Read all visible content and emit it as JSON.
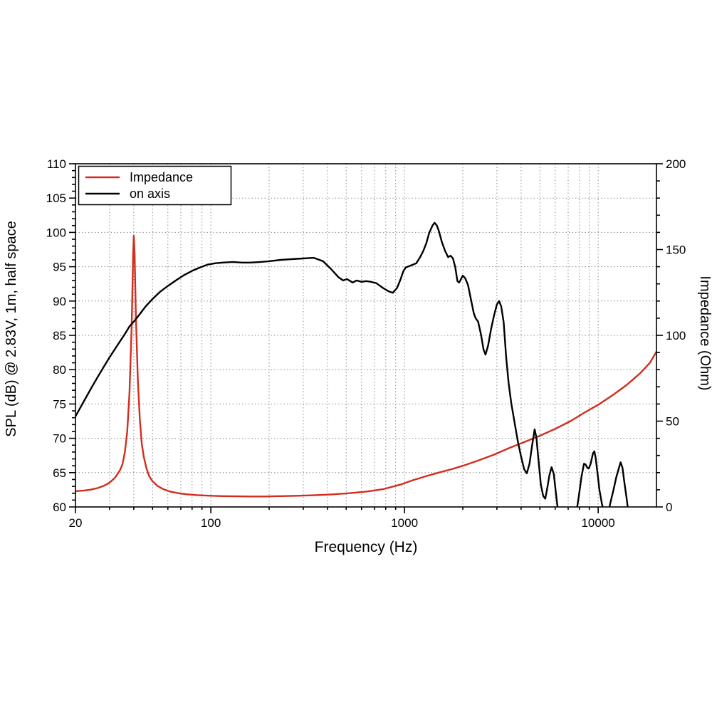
{
  "page": {
    "background": "#ffffff"
  },
  "chart_data": {
    "type": "line",
    "title": "",
    "xlabel": "Frequency (Hz)",
    "ylabel_left": "SPL (dB) @ 2.83V, 1m, half space",
    "ylabel_right": "Impedance (Ohm)",
    "x_scale": "log",
    "xlim": [
      20,
      20000
    ],
    "ylim_left": [
      60,
      110
    ],
    "ylim_right": [
      0,
      200
    ],
    "x_tick_values": [
      20,
      100,
      1000,
      10000
    ],
    "x_tick_labels": [
      "20",
      "100",
      "1000",
      "10000"
    ],
    "y_ticks_left": [
      60,
      65,
      70,
      75,
      80,
      85,
      90,
      95,
      100,
      105,
      110
    ],
    "y_ticks_right": [
      0,
      50,
      100,
      150,
      200
    ],
    "y_minor_step_left": 1,
    "y_minor_step_right": 10,
    "grid": "dotted",
    "grid_color": "#8c8c8c",
    "axis_color": "#000000",
    "legend_position": "top-left",
    "legend_entries": [
      "Impedance",
      "on axis"
    ],
    "series": [
      {
        "name": "Impedance",
        "axis": "right",
        "unit": "Ohm",
        "color": "#d22d1e",
        "points": [
          [
            20,
            9.2
          ],
          [
            22,
            9.5
          ],
          [
            24,
            10.1
          ],
          [
            26,
            11.0
          ],
          [
            28,
            12.3
          ],
          [
            30,
            14.2
          ],
          [
            32,
            17.0
          ],
          [
            34,
            21.5
          ],
          [
            35,
            25.0
          ],
          [
            36,
            32.0
          ],
          [
            37,
            44.0
          ],
          [
            38,
            66.0
          ],
          [
            39,
            105.0
          ],
          [
            39.7,
            147.0
          ],
          [
            40,
            158.0
          ],
          [
            40.4,
            147.0
          ],
          [
            41,
            112.0
          ],
          [
            42,
            74.0
          ],
          [
            43,
            51.0
          ],
          [
            44,
            37.0
          ],
          [
            45,
            29.5
          ],
          [
            46.5,
            22.5
          ],
          [
            48,
            18.0
          ],
          [
            50,
            15.0
          ],
          [
            53,
            12.3
          ],
          [
            57,
            10.3
          ],
          [
            62,
            8.9
          ],
          [
            68,
            8.0
          ],
          [
            75,
            7.4
          ],
          [
            85,
            6.9
          ],
          [
            100,
            6.5
          ],
          [
            115,
            6.3
          ],
          [
            135,
            6.2
          ],
          [
            160,
            6.1
          ],
          [
            190,
            6.1
          ],
          [
            230,
            6.3
          ],
          [
            280,
            6.5
          ],
          [
            340,
            6.8
          ],
          [
            420,
            7.3
          ],
          [
            520,
            8.0
          ],
          [
            640,
            9.0
          ],
          [
            780,
            10.4
          ],
          [
            950,
            13.0
          ],
          [
            1100,
            15.5
          ],
          [
            1300,
            18.0
          ],
          [
            1500,
            20.0
          ],
          [
            1750,
            22.0
          ],
          [
            2000,
            24.0
          ],
          [
            2400,
            27.0
          ],
          [
            2900,
            30.5
          ],
          [
            3500,
            34.5
          ],
          [
            4200,
            38.0
          ],
          [
            5000,
            41.5
          ],
          [
            6000,
            45.5
          ],
          [
            7200,
            50.0
          ],
          [
            8500,
            55.0
          ],
          [
            10000,
            59.5
          ],
          [
            12000,
            65.5
          ],
          [
            14000,
            71.0
          ],
          [
            16500,
            78.0
          ],
          [
            18500,
            84.0
          ],
          [
            20000,
            90.5
          ]
        ]
      },
      {
        "name": "on axis",
        "axis": "left",
        "unit": "dB SPL",
        "color": "#000000",
        "points": [
          [
            20,
            73.2
          ],
          [
            22,
            75.3
          ],
          [
            24,
            77.2
          ],
          [
            26,
            78.9
          ],
          [
            28,
            80.4
          ],
          [
            30,
            81.8
          ],
          [
            33,
            83.6
          ],
          [
            36,
            85.2
          ],
          [
            38,
            86.3
          ],
          [
            40,
            87.0
          ],
          [
            43,
            88.1
          ],
          [
            46,
            89.2
          ],
          [
            50,
            90.3
          ],
          [
            55,
            91.4
          ],
          [
            60,
            92.2
          ],
          [
            66,
            93.0
          ],
          [
            72,
            93.7
          ],
          [
            80,
            94.4
          ],
          [
            88,
            94.9
          ],
          [
            96,
            95.3
          ],
          [
            105,
            95.5
          ],
          [
            115,
            95.6
          ],
          [
            130,
            95.7
          ],
          [
            145,
            95.6
          ],
          [
            160,
            95.6
          ],
          [
            180,
            95.7
          ],
          [
            200,
            95.8
          ],
          [
            230,
            96.0
          ],
          [
            260,
            96.1
          ],
          [
            300,
            96.2
          ],
          [
            340,
            96.3
          ],
          [
            380,
            95.8
          ],
          [
            420,
            94.6
          ],
          [
            455,
            93.5
          ],
          [
            482,
            93.0
          ],
          [
            505,
            93.2
          ],
          [
            540,
            92.7
          ],
          [
            565,
            93.0
          ],
          [
            600,
            92.8
          ],
          [
            635,
            92.9
          ],
          [
            670,
            92.8
          ],
          [
            715,
            92.6
          ],
          [
            775,
            91.9
          ],
          [
            830,
            91.4
          ],
          [
            870,
            91.2
          ],
          [
            915,
            91.9
          ],
          [
            955,
            93.2
          ],
          [
            985,
            94.3
          ],
          [
            1015,
            94.9
          ],
          [
            1060,
            95.1
          ],
          [
            1105,
            95.3
          ],
          [
            1150,
            95.5
          ],
          [
            1205,
            96.4
          ],
          [
            1250,
            97.3
          ],
          [
            1295,
            98.4
          ],
          [
            1340,
            99.9
          ],
          [
            1395,
            101.0
          ],
          [
            1430,
            101.4
          ],
          [
            1470,
            101.0
          ],
          [
            1505,
            100.2
          ],
          [
            1560,
            98.6
          ],
          [
            1620,
            97.3
          ],
          [
            1680,
            96.4
          ],
          [
            1730,
            96.6
          ],
          [
            1780,
            96.2
          ],
          [
            1830,
            94.9
          ],
          [
            1875,
            92.9
          ],
          [
            1915,
            92.7
          ],
          [
            2000,
            93.7
          ],
          [
            2060,
            93.3
          ],
          [
            2130,
            92.3
          ],
          [
            2200,
            90.3
          ],
          [
            2280,
            88.2
          ],
          [
            2330,
            87.5
          ],
          [
            2400,
            87.0
          ],
          [
            2480,
            85.2
          ],
          [
            2560,
            82.9
          ],
          [
            2620,
            82.2
          ],
          [
            2700,
            83.5
          ],
          [
            2800,
            85.9
          ],
          [
            2900,
            87.9
          ],
          [
            3000,
            89.5
          ],
          [
            3080,
            90.0
          ],
          [
            3160,
            89.2
          ],
          [
            3250,
            86.9
          ],
          [
            3350,
            81.8
          ],
          [
            3450,
            78.0
          ],
          [
            3560,
            75.1
          ],
          [
            3700,
            72.3
          ],
          [
            3850,
            69.5
          ],
          [
            4000,
            67.3
          ],
          [
            4150,
            65.5
          ],
          [
            4280,
            64.9
          ],
          [
            4420,
            66.3
          ],
          [
            4560,
            69.0
          ],
          [
            4700,
            71.3
          ],
          [
            4800,
            70.1
          ],
          [
            4920,
            66.8
          ],
          [
            5060,
            63.3
          ],
          [
            5200,
            61.6
          ],
          [
            5330,
            61.2
          ],
          [
            5450,
            62.6
          ],
          [
            5600,
            64.6
          ],
          [
            5750,
            65.8
          ],
          [
            5900,
            64.8
          ],
          [
            6050,
            62.0
          ],
          [
            6150,
            60.3
          ],
          [
            6300,
            58.3
          ],
          [
            6600,
            56.8
          ],
          [
            7000,
            56.0
          ],
          [
            7400,
            57.2
          ],
          [
            7700,
            59.0
          ],
          [
            7950,
            61.6
          ],
          [
            8200,
            64.4
          ],
          [
            8450,
            66.3
          ],
          [
            8600,
            66.2
          ],
          [
            8800,
            65.7
          ],
          [
            8950,
            65.6
          ],
          [
            9150,
            66.3
          ],
          [
            9400,
            67.8
          ],
          [
            9560,
            68.1
          ],
          [
            9700,
            67.2
          ],
          [
            9900,
            65.2
          ],
          [
            10150,
            62.5
          ],
          [
            10450,
            60.5
          ],
          [
            10750,
            59.0
          ],
          [
            11050,
            58.6
          ],
          [
            11350,
            59.6
          ],
          [
            11650,
            61.0
          ],
          [
            12000,
            62.5
          ],
          [
            12400,
            64.3
          ],
          [
            12750,
            65.5
          ],
          [
            13050,
            66.5
          ],
          [
            13350,
            65.7
          ],
          [
            13650,
            63.6
          ],
          [
            14000,
            61.4
          ],
          [
            14350,
            59.0
          ],
          [
            14700,
            56.5
          ]
        ]
      }
    ]
  }
}
